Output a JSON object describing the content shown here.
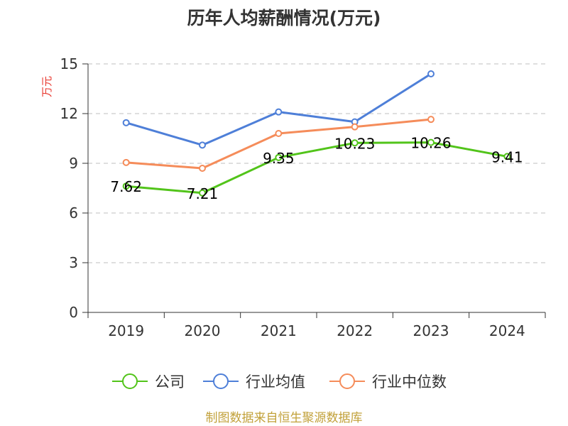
{
  "title": "历年人均薪酬情况(万元)",
  "source": "制图数据来自恒生聚源数据库",
  "chart_data": {
    "type": "line",
    "title": "历年人均薪酬情况(万元)",
    "ylabel": "万元",
    "categories": [
      "2019",
      "2020",
      "2021",
      "2022",
      "2023",
      "2024"
    ],
    "ylim": [
      0,
      15
    ],
    "yticks": [
      0,
      3,
      6,
      9,
      12,
      15
    ],
    "grid": "horizontal dashed",
    "legend_position": "bottom",
    "series": [
      {
        "name": "公司",
        "color": "#52c41a",
        "values": [
          7.62,
          7.21,
          9.35,
          10.23,
          10.26,
          9.41
        ],
        "labels": [
          "7.62",
          "7.21",
          "9.35",
          "10.23",
          "10.26",
          "9.41"
        ]
      },
      {
        "name": "行业均值",
        "color": "#4e7fd8",
        "values": [
          11.45,
          10.1,
          12.1,
          11.5,
          14.4,
          null
        ]
      },
      {
        "name": "行业中位数",
        "color": "#f58c5a",
        "values": [
          9.05,
          8.7,
          10.8,
          11.2,
          11.65,
          null
        ]
      }
    ]
  }
}
